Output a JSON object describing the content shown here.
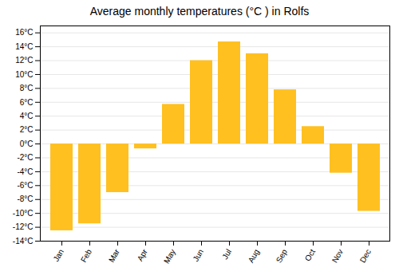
{
  "chart_data": {
    "type": "bar",
    "title": "Average monthly temperatures (°C ) in Rolfs",
    "categories": [
      "Jan",
      "Feb",
      "Mar",
      "Apr",
      "May",
      "Jun",
      "Jul",
      "Aug",
      "Sep",
      "Oct",
      "Nov",
      "Dec"
    ],
    "values": [
      -12.5,
      -11.5,
      -7.0,
      -0.7,
      5.7,
      12.0,
      14.7,
      13.0,
      7.8,
      2.5,
      -4.2,
      -9.7
    ],
    "color": "#FFC020",
    "ylim": [
      -14,
      17
    ],
    "yticks": [
      {
        "value": -14,
        "label": "-14°C"
      },
      {
        "value": -12,
        "label": "-12°C"
      },
      {
        "value": -10,
        "label": "-10°C"
      },
      {
        "value": -8,
        "label": "-8°C"
      },
      {
        "value": -6,
        "label": "-6°C"
      },
      {
        "value": -4,
        "label": "-4°C"
      },
      {
        "value": -2,
        "label": "-2°C"
      },
      {
        "value": 0,
        "label": "0°C"
      },
      {
        "value": 2,
        "label": "2°C"
      },
      {
        "value": 4,
        "label": "4°C"
      },
      {
        "value": 6,
        "label": "6°C"
      },
      {
        "value": 8,
        "label": "8°C"
      },
      {
        "value": 10,
        "label": "10°C"
      },
      {
        "value": 12,
        "label": "12°C"
      },
      {
        "value": 14,
        "label": "14°C"
      },
      {
        "value": 16,
        "label": "16°C"
      }
    ],
    "grid": true
  }
}
